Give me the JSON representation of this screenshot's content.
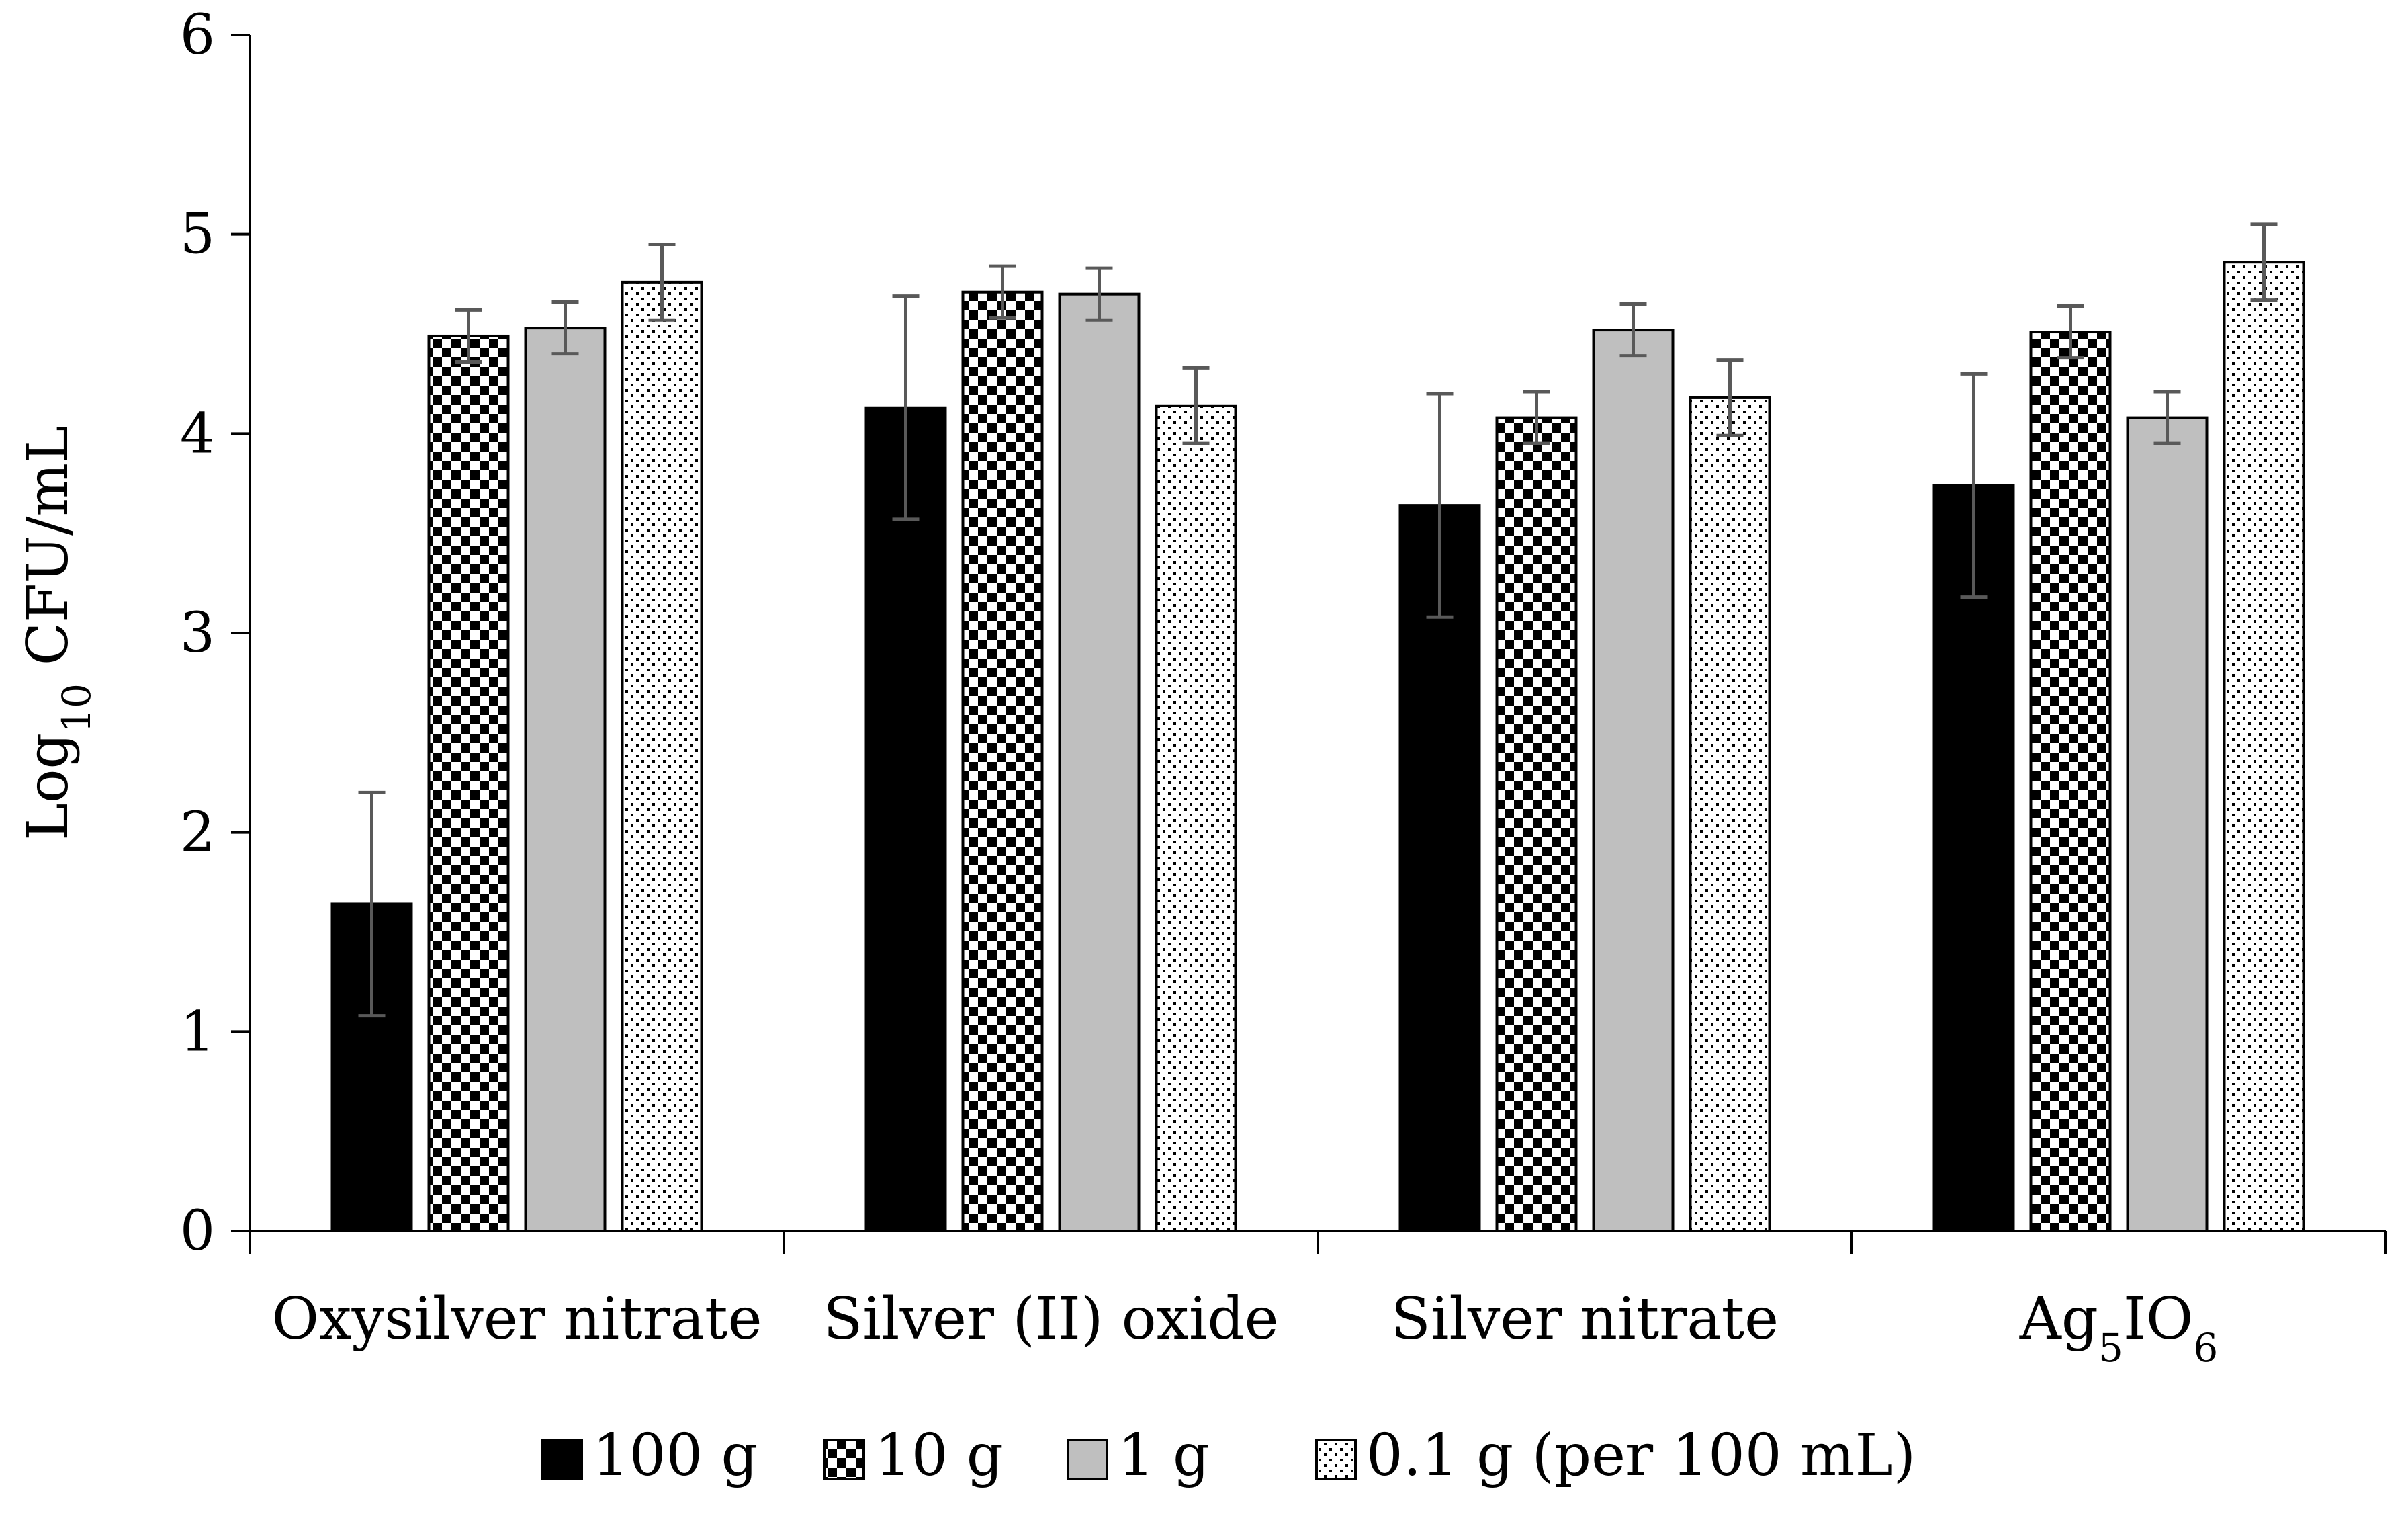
{
  "chart_data": {
    "type": "bar",
    "title": "",
    "xlabel": "",
    "ylabel": {
      "base": "Log",
      "sub": "10",
      "rest": " CFU/mL"
    },
    "ylim": [
      0,
      6
    ],
    "yticks": [
      0,
      1,
      2,
      3,
      4,
      5,
      6
    ],
    "grid": false,
    "legend_position": "bottom",
    "categories": [
      {
        "label": "Oxysilver nitrate",
        "parts": [
          {
            "t": "Oxysilver nitrate",
            "sub": false
          }
        ]
      },
      {
        "label": "Silver (II) oxide",
        "parts": [
          {
            "t": "Silver (II) oxide",
            "sub": false
          }
        ]
      },
      {
        "label": "Silver nitrate",
        "parts": [
          {
            "t": "Silver nitrate",
            "sub": false
          }
        ]
      },
      {
        "label": "Ag5IO6",
        "parts": [
          {
            "t": "Ag",
            "sub": false
          },
          {
            "t": "5",
            "sub": true
          },
          {
            "t": "IO",
            "sub": false
          },
          {
            "t": "6",
            "sub": true
          }
        ]
      }
    ],
    "series": [
      {
        "name": "100 g",
        "pattern": "solid-black",
        "values": [
          1.64,
          4.13,
          3.64,
          3.74
        ],
        "errors": [
          0.56,
          0.56,
          0.56,
          0.56
        ]
      },
      {
        "name": "10 g",
        "pattern": "checker",
        "values": [
          4.49,
          4.71,
          4.08,
          4.51
        ],
        "errors": [
          0.13,
          0.13,
          0.13,
          0.13
        ]
      },
      {
        "name": "1 g",
        "pattern": "solid-gray",
        "values": [
          4.53,
          4.7,
          4.52,
          4.08
        ],
        "errors": [
          0.13,
          0.13,
          0.13,
          0.13
        ]
      },
      {
        "name": "0.1 g (per 100 mL)",
        "pattern": "dots",
        "values": [
          4.76,
          4.14,
          4.18,
          4.86
        ],
        "errors": [
          0.19,
          0.19,
          0.19,
          0.19
        ]
      }
    ],
    "colors": {
      "black": "#000000",
      "gray": "#bfbfbf",
      "error": "#595959",
      "axis": "#000000"
    }
  }
}
